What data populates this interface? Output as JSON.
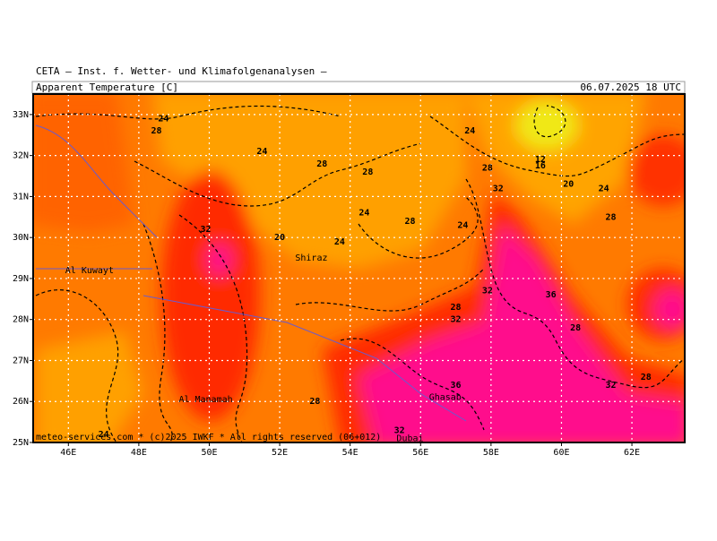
{
  "header": {
    "institute": "CETA – Inst. f. Wetter- und Klimafolgenanalysen –",
    "title": "Apparent Temperature [C]",
    "valid_time": "06.07.2025 18 UTC",
    "footer": "meteo-services.com * (c)2025 IWKF * All rights reserved (06+012)"
  },
  "map": {
    "lon_range": [
      45,
      63.5
    ],
    "lat_range": [
      25,
      33.5
    ],
    "lon_ticks": [
      {
        "value": 46,
        "label": "46E"
      },
      {
        "value": 48,
        "label": "48E"
      },
      {
        "value": 50,
        "label": "50E"
      },
      {
        "value": 52,
        "label": "52E"
      },
      {
        "value": 54,
        "label": "54E"
      },
      {
        "value": 56,
        "label": "56E"
      },
      {
        "value": 58,
        "label": "58E"
      },
      {
        "value": 60,
        "label": "60E"
      },
      {
        "value": 62,
        "label": "62E"
      }
    ],
    "lat_ticks": [
      {
        "value": 25,
        "label": "25N"
      },
      {
        "value": 26,
        "label": "26N"
      },
      {
        "value": 27,
        "label": "27N"
      },
      {
        "value": 28,
        "label": "28N"
      },
      {
        "value": 29,
        "label": "29N"
      },
      {
        "value": 30,
        "label": "30N"
      },
      {
        "value": 31,
        "label": "31N"
      },
      {
        "value": 32,
        "label": "32N"
      },
      {
        "value": 33,
        "label": "33N"
      }
    ],
    "places": [
      {
        "name": "Al Kuwayt",
        "lon": 46.6,
        "lat": 29.2
      },
      {
        "name": "Shiraz",
        "lon": 52.9,
        "lat": 29.5
      },
      {
        "name": "Al Manamah",
        "lon": 49.9,
        "lat": 26.05
      },
      {
        "name": "Ghasab",
        "lon": 56.7,
        "lat": 26.1
      },
      {
        "name": "Dubai",
        "lon": 55.7,
        "lat": 25.1
      }
    ],
    "contour_labels": [
      {
        "value": 24,
        "lon": 48.7,
        "lat": 32.9
      },
      {
        "value": 28,
        "lon": 48.5,
        "lat": 32.6
      },
      {
        "value": 24,
        "lon": 51.5,
        "lat": 32.1
      },
      {
        "value": 28,
        "lon": 53.2,
        "lat": 31.8
      },
      {
        "value": 28,
        "lon": 54.5,
        "lat": 31.6
      },
      {
        "value": 24,
        "lon": 57.4,
        "lat": 32.6
      },
      {
        "value": 28,
        "lon": 57.9,
        "lat": 31.7
      },
      {
        "value": 32,
        "lon": 58.2,
        "lat": 31.2
      },
      {
        "value": 12,
        "lon": 59.4,
        "lat": 31.9
      },
      {
        "value": 16,
        "lon": 59.4,
        "lat": 31.75
      },
      {
        "value": 20,
        "lon": 60.2,
        "lat": 31.3
      },
      {
        "value": 24,
        "lon": 61.2,
        "lat": 31.2
      },
      {
        "value": 28,
        "lon": 61.4,
        "lat": 30.5
      },
      {
        "value": 32,
        "lon": 49.9,
        "lat": 30.2
      },
      {
        "value": 20,
        "lon": 52.0,
        "lat": 30.0
      },
      {
        "value": 24,
        "lon": 53.7,
        "lat": 29.9
      },
      {
        "value": 24,
        "lon": 54.4,
        "lat": 30.6
      },
      {
        "value": 28,
        "lon": 55.7,
        "lat": 30.4
      },
      {
        "value": 24,
        "lon": 57.2,
        "lat": 30.3
      },
      {
        "value": 32,
        "lon": 57.9,
        "lat": 28.7
      },
      {
        "value": 36,
        "lon": 59.7,
        "lat": 28.6
      },
      {
        "value": 28,
        "lon": 57.0,
        "lat": 28.3
      },
      {
        "value": 32,
        "lon": 57.0,
        "lat": 28.0
      },
      {
        "value": 28,
        "lon": 60.4,
        "lat": 27.8
      },
      {
        "value": 36,
        "lon": 57.0,
        "lat": 26.4
      },
      {
        "value": 28,
        "lon": 53.0,
        "lat": 26.0
      },
      {
        "value": 28,
        "lon": 62.4,
        "lat": 26.6
      },
      {
        "value": 32,
        "lon": 61.4,
        "lat": 26.4
      },
      {
        "value": 32,
        "lon": 55.4,
        "lat": 25.3
      },
      {
        "value": 24,
        "lon": 47.0,
        "lat": 25.2
      }
    ]
  }
}
